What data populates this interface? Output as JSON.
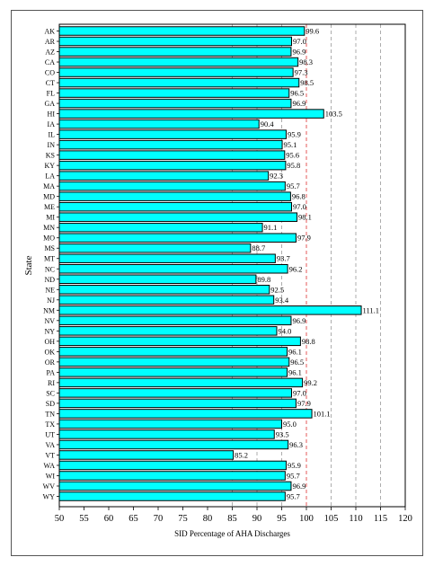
{
  "chart_data": {
    "type": "bar",
    "orientation": "horizontal",
    "xlabel": "SID Percentage of AHA Discharges",
    "ylabel": "State",
    "xlim": [
      50,
      120
    ],
    "xticks": [
      50,
      55,
      60,
      65,
      70,
      75,
      80,
      85,
      90,
      95,
      100,
      105,
      110,
      115,
      120
    ],
    "reference_lines": [
      {
        "value": 85,
        "color": "#999999",
        "style": "dashed"
      },
      {
        "value": 90,
        "color": "#999999",
        "style": "dashed"
      },
      {
        "value": 95,
        "color": "#999999",
        "style": "dashed"
      },
      {
        "value": 100,
        "color": "#e03030",
        "style": "dashed"
      },
      {
        "value": 105,
        "color": "#999999",
        "style": "dashed"
      },
      {
        "value": 110,
        "color": "#999999",
        "style": "dashed"
      },
      {
        "value": 115,
        "color": "#999999",
        "style": "dashed"
      }
    ],
    "bar_color": "#00FFFF",
    "categories": [
      "AK",
      "AR",
      "AZ",
      "CA",
      "CO",
      "CT",
      "FL",
      "GA",
      "HI",
      "IA",
      "IL",
      "IN",
      "KS",
      "KY",
      "LA",
      "MA",
      "MD",
      "ME",
      "MI",
      "MN",
      "MO",
      "MS",
      "MT",
      "NC",
      "ND",
      "NE",
      "NJ",
      "NM",
      "NV",
      "NY",
      "OH",
      "OK",
      "OR",
      "PA",
      "RI",
      "SC",
      "SD",
      "TN",
      "TX",
      "UT",
      "VA",
      "VT",
      "WA",
      "WI",
      "WV",
      "WY"
    ],
    "values": [
      99.6,
      97.0,
      96.9,
      98.3,
      97.3,
      98.5,
      96.5,
      96.9,
      103.5,
      90.4,
      95.9,
      95.1,
      95.6,
      95.8,
      92.3,
      95.7,
      96.8,
      97.0,
      98.1,
      91.1,
      97.9,
      88.7,
      93.7,
      96.2,
      89.8,
      92.5,
      93.4,
      111.1,
      96.9,
      94.0,
      98.8,
      96.1,
      96.5,
      96.1,
      99.2,
      97.0,
      97.9,
      101.1,
      95.0,
      93.5,
      96.3,
      85.2,
      95.9,
      95.7,
      96.9,
      95.7
    ],
    "value_labels": [
      "99.6",
      "97.0",
      "96.9",
      "98.3",
      "97.3",
      "98.5",
      "96.5",
      "96.9",
      "103.5",
      "90.4",
      "95.9",
      "95.1",
      "95.6",
      "95.8",
      "92.3",
      "95.7",
      "96.8",
      "97.0",
      "98.1",
      "91.1",
      "97.9",
      "88.7",
      "93.7",
      "96.2",
      "89.8",
      "92.5",
      "93.4",
      "111.1",
      "96.9",
      "94.0",
      "98.8",
      "96.1",
      "96.5",
      "96.1",
      "99.2",
      "97.0",
      "97.9",
      "101.1",
      "95.0",
      "93.5",
      "96.3",
      "85.2",
      "95.9",
      "95.7",
      "96.9",
      "95.7"
    ]
  }
}
